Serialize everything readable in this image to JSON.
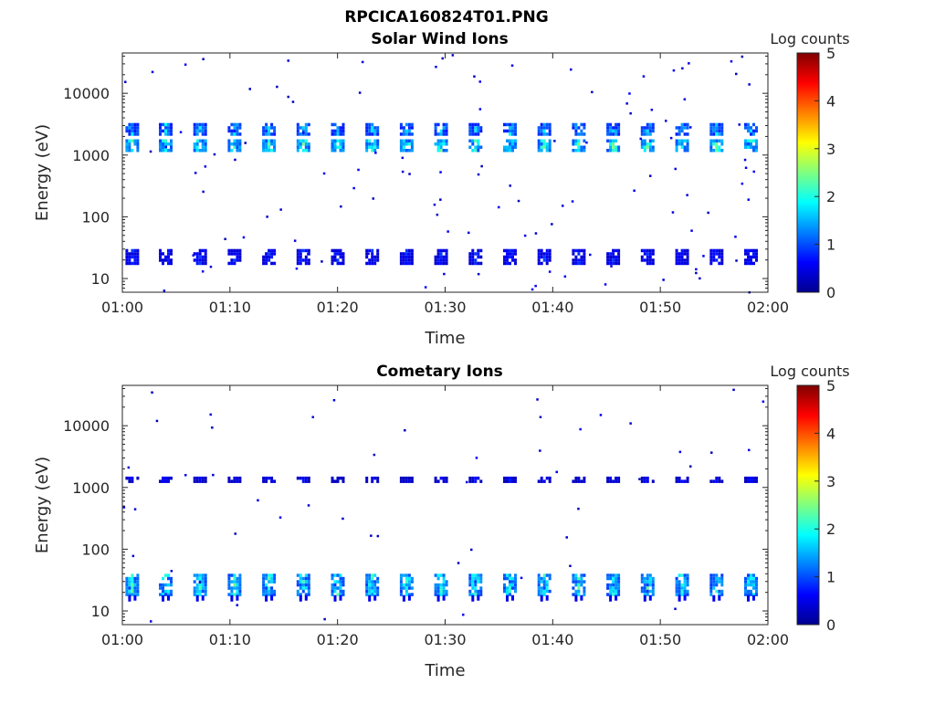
{
  "figure": {
    "title": "RPCICA160824T01.PNG"
  },
  "chart_data": [
    {
      "type": "heatmap",
      "title": "Solar Wind Ions",
      "xlabel": "Time",
      "ylabel": "Energy (eV)",
      "y_scale": "log",
      "ylim": [
        6,
        45000
      ],
      "xlim": [
        "01:00",
        "02:00"
      ],
      "x_ticks": [
        "01:00",
        "01:10",
        "01:20",
        "01:30",
        "01:40",
        "01:50",
        "02:00"
      ],
      "y_ticks": [
        10,
        100,
        1000,
        10000
      ],
      "y_tick_labels": [
        "10",
        "100",
        "1000",
        "10000"
      ],
      "colorbar": {
        "label": "Log counts",
        "min": 0,
        "max": 5,
        "ticks": [
          "0",
          "1",
          "2",
          "3",
          "4",
          "5"
        ],
        "colormap": "jet"
      },
      "sweep_minutes": [
        0.8,
        3.9,
        7.1,
        10.3,
        13.5,
        16.7,
        19.9,
        23.1,
        26.3,
        29.5,
        32.7,
        35.9,
        39.1,
        42.3,
        45.5,
        48.7,
        51.9,
        55.1,
        58.3
      ],
      "peaks": [
        {
          "energy_low": 1150,
          "energy_high": 1800,
          "log_counts": 2.2
        },
        {
          "energy_low": 2300,
          "energy_high": 3300,
          "log_counts": 1.6
        },
        {
          "energy_low": 18,
          "energy_high": 30,
          "log_counts": 0.8
        }
      ]
    },
    {
      "type": "heatmap",
      "title": "Cometary Ions",
      "xlabel": "Time",
      "ylabel": "Energy (eV)",
      "y_scale": "log",
      "ylim": [
        6,
        45000
      ],
      "xlim": [
        "01:00",
        "02:00"
      ],
      "x_ticks": [
        "01:00",
        "01:10",
        "01:20",
        "01:30",
        "01:40",
        "01:50",
        "02:00"
      ],
      "y_ticks": [
        10,
        100,
        1000,
        10000
      ],
      "y_tick_labels": [
        "10",
        "100",
        "1000",
        "10000"
      ],
      "colorbar": {
        "label": "Log counts",
        "min": 0,
        "max": 5,
        "ticks": [
          "0",
          "1",
          "2",
          "3",
          "4",
          "5"
        ],
        "colormap": "jet"
      },
      "sweep_minutes": [
        0.8,
        3.9,
        7.1,
        10.3,
        13.5,
        16.7,
        19.9,
        23.1,
        26.3,
        29.5,
        32.7,
        35.9,
        39.1,
        42.3,
        45.5,
        48.7,
        51.9,
        55.1,
        58.3
      ],
      "peaks": [
        {
          "energy_low": 18,
          "energy_high": 40,
          "log_counts": 2.0
        },
        {
          "energy_low": 1250,
          "energy_high": 1500,
          "log_counts": 0.6
        }
      ]
    }
  ]
}
